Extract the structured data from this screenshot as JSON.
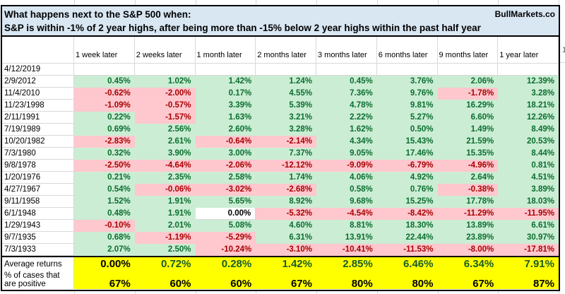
{
  "title": {
    "line1": "What happens next to the S&P 500 when:",
    "line2": "S&P is within -1% of 2 year highs, after being more than -15% below 2 year highs within the past half year",
    "brand": "BullMarkets.co"
  },
  "table": {
    "column_headers": [
      "1 week later",
      "2 weeks later",
      "1 month later",
      "2 months later",
      "3 months later",
      "6 months later",
      "9 months later",
      "1 year later"
    ],
    "partial_next_column_header": "1",
    "rows": [
      {
        "date": "4/12/2019",
        "values": [
          "",
          "",
          "",
          "",
          "",
          "",
          "",
          ""
        ]
      },
      {
        "date": "2/9/2012",
        "values": [
          "0.45%",
          "1.02%",
          "1.42%",
          "1.24%",
          "0.45%",
          "3.76%",
          "2.06%",
          "12.39%"
        ]
      },
      {
        "date": "11/4/2010",
        "values": [
          "-0.62%",
          "-2.00%",
          "0.17%",
          "4.55%",
          "7.36%",
          "9.76%",
          "-1.78%",
          "3.28%"
        ]
      },
      {
        "date": "11/23/1998",
        "values": [
          "-1.09%",
          "-0.57%",
          "3.39%",
          "5.39%",
          "4.78%",
          "9.81%",
          "16.29%",
          "18.21%"
        ]
      },
      {
        "date": "2/11/1991",
        "values": [
          "0.22%",
          "-1.57%",
          "1.63%",
          "3.21%",
          "2.22%",
          "5.27%",
          "6.60%",
          "12.26%"
        ]
      },
      {
        "date": "7/19/1989",
        "values": [
          "0.69%",
          "2.56%",
          "2.60%",
          "3.28%",
          "1.62%",
          "0.50%",
          "1.49%",
          "8.49%"
        ]
      },
      {
        "date": "10/20/1982",
        "values": [
          "-2.83%",
          "2.61%",
          "-0.64%",
          "-2.14%",
          "4.34%",
          "15.43%",
          "21.59%",
          "20.53%"
        ]
      },
      {
        "date": "7/3/1980",
        "values": [
          "0.32%",
          "3.90%",
          "3.00%",
          "7.37%",
          "9.05%",
          "17.46%",
          "15.35%",
          "8.44%"
        ]
      },
      {
        "date": "9/8/1978",
        "values": [
          "-2.50%",
          "-4.64%",
          "-2.06%",
          "-12.12%",
          "-9.09%",
          "-6.79%",
          "-4.96%",
          "0.81%"
        ]
      },
      {
        "date": "1/20/1976",
        "values": [
          "0.21%",
          "2.35%",
          "2.58%",
          "1.74%",
          "4.06%",
          "4.92%",
          "2.64%",
          "4.51%"
        ]
      },
      {
        "date": "4/27/1967",
        "values": [
          "0.54%",
          "-0.06%",
          "-3.02%",
          "-2.68%",
          "0.58%",
          "0.76%",
          "-0.38%",
          "3.89%"
        ]
      },
      {
        "date": "9/11/1958",
        "values": [
          "1.52%",
          "1.91%",
          "5.65%",
          "8.92%",
          "9.68%",
          "15.25%",
          "17.78%",
          "18.03%"
        ]
      },
      {
        "date": "6/1/1948",
        "values": [
          "0.48%",
          "1.91%",
          "0.00%",
          "-5.32%",
          "-4.54%",
          "-8.42%",
          "-11.29%",
          "-11.95%"
        ]
      },
      {
        "date": "1/29/1943",
        "values": [
          "-0.10%",
          "2.01%",
          "5.08%",
          "4.60%",
          "8.81%",
          "18.30%",
          "13.89%",
          "6.61%"
        ]
      },
      {
        "date": "9/7/1935",
        "values": [
          "0.68%",
          "-1.19%",
          "-5.29%",
          "6.31%",
          "13.91%",
          "22.44%",
          "23.89%",
          "30.97%"
        ]
      },
      {
        "date": "7/3/1933",
        "values": [
          "2.07%",
          "2.50%",
          "-10.24%",
          "-3.10%",
          "-10.41%",
          "-11.53%",
          "-8.00%",
          "-17.81%"
        ]
      }
    ],
    "summary": {
      "average_label": "Average returns",
      "average_values": [
        "0.00%",
        "0.72%",
        "0.28%",
        "1.42%",
        "2.85%",
        "6.46%",
        "6.34%",
        "7.91%"
      ],
      "percent_label_line1": "% of cases that",
      "percent_label_line2": "are positive",
      "percent_values": [
        "67%",
        "60%",
        "60%",
        "67%",
        "80%",
        "80%",
        "67%",
        "87%"
      ]
    }
  },
  "colors": {
    "positive_bg": "#CBEDD4",
    "positive_text": "#0A6E2E",
    "negative_bg": "#FFC7CE",
    "negative_text": "#A80000",
    "title_bg": "#D9E7F3",
    "summary_bg": "#FFFF00",
    "average_positive_text": "#1A5C2A",
    "gridline": "#D8D8D8"
  }
}
